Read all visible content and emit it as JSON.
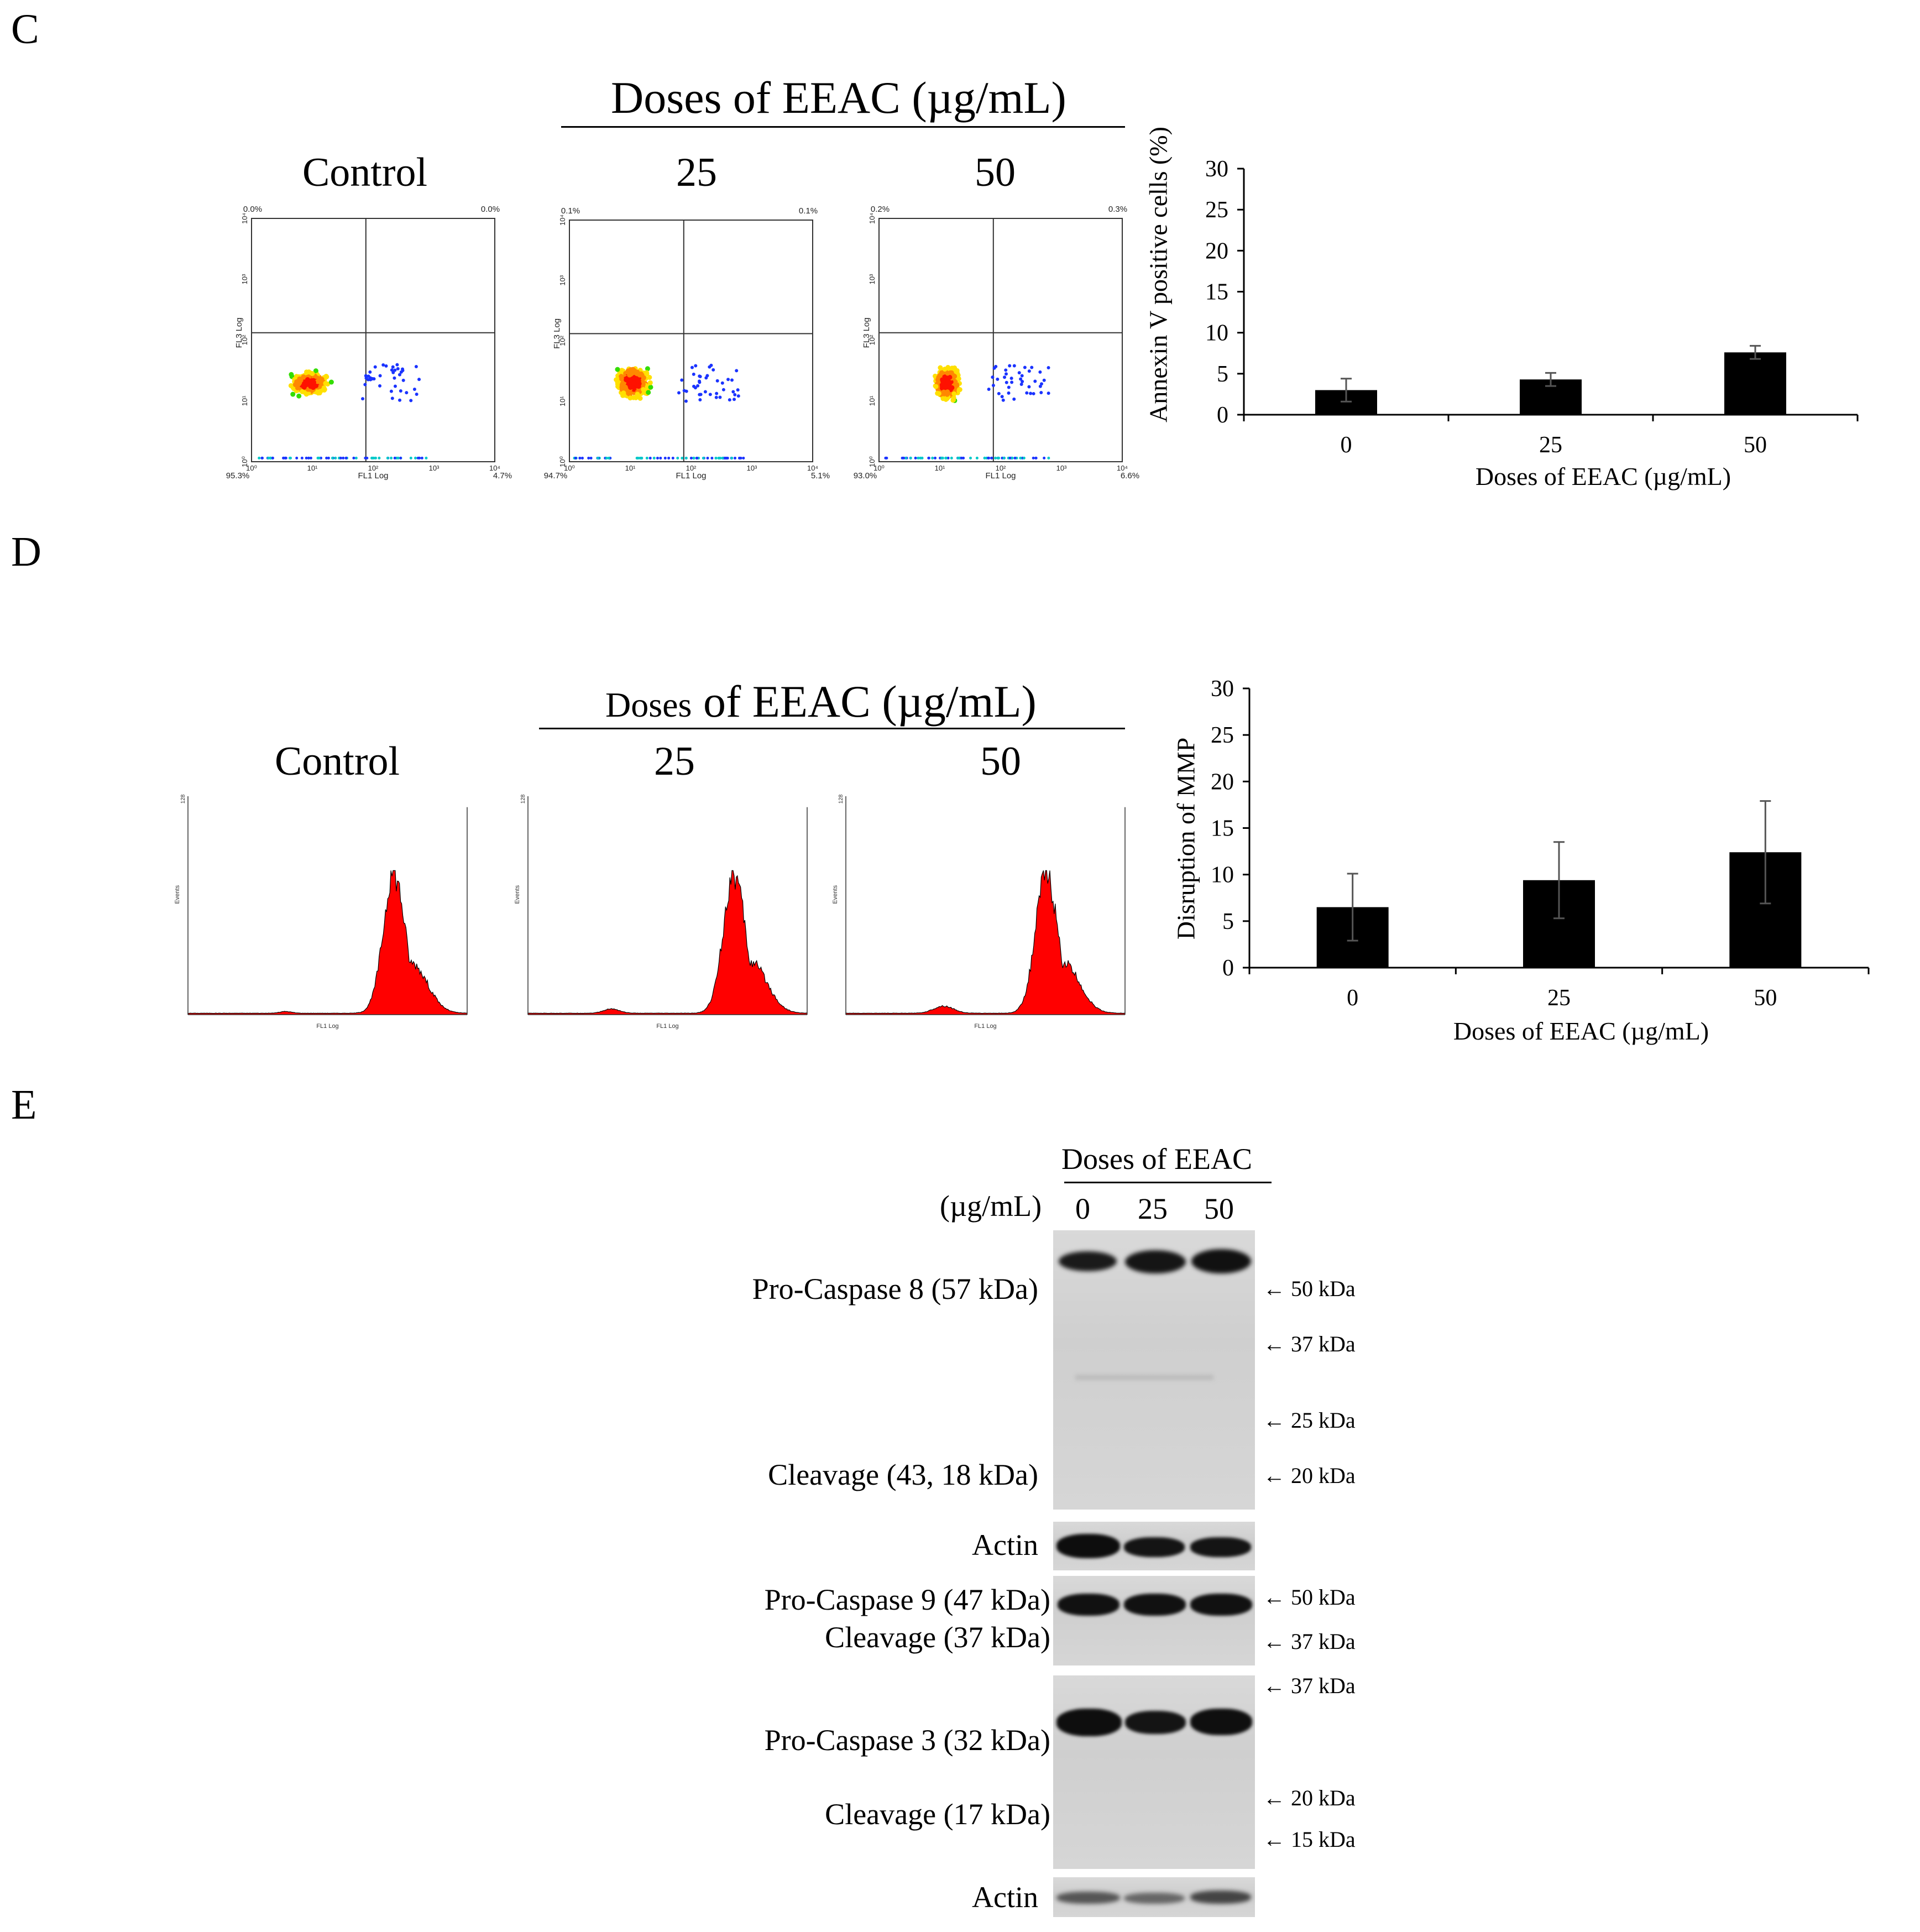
{
  "panels": {
    "C": {
      "letter": "C",
      "doses_title": "Doses of EEAC (µg/mL)",
      "scatter_plots": [
        {
          "title": "Control",
          "ul": "0.0%",
          "ur": "0.0%",
          "ll": "95.3%",
          "lr": "4.7%"
        },
        {
          "title": "25",
          "ul": "0.1%",
          "ur": "0.1%",
          "ll": "94.7%",
          "lr": "5.1%"
        },
        {
          "title": "50",
          "ul": "0.2%",
          "ur": "0.3%",
          "ll": "93.0%",
          "lr": "6.6%"
        }
      ],
      "scatter_axes": {
        "x_label": "FL1 Log",
        "y_label": "FL3 Log",
        "ticks": [
          "10⁰",
          "10¹",
          "10²",
          "10³",
          "10⁴"
        ]
      }
    },
    "D": {
      "letter": "D",
      "doses_title_small": "Doses",
      "doses_title_rest": "of EEAC (µg/mL)",
      "histograms": [
        {
          "title": "Control"
        },
        {
          "title": "25"
        },
        {
          "title": "50"
        }
      ],
      "hist_axes": {
        "x_label": "FL1 Log",
        "y_label": "Events",
        "y_max": "128"
      }
    },
    "E": {
      "letter": "E",
      "doses_header": "Doses of EEAC",
      "unit_label": "(µg/mL)",
      "lanes": [
        "0",
        "25",
        "50"
      ],
      "labels": {
        "procasp8": "Pro-Caspase 8 (57 kDa)",
        "cleav8": "Cleavage (43, 18 kDa)",
        "actin1": "Actin",
        "procasp9": "Pro-Caspase 9 (47 kDa)",
        "cleav9": "Cleavage (37 kDa)",
        "procasp3": "Pro-Caspase 3 (32 kDa)",
        "cleav3": "Cleavage (17 kDa)",
        "actin2": "Actin"
      },
      "markers": {
        "m1": "← 50 kDa",
        "m2": "← 37 kDa",
        "m3": "← 25 kDa",
        "m4": "← 20 kDa",
        "m5": "← 50 kDa",
        "m6": "← 37 kDa",
        "m7": "← 37 kDa",
        "m8": "← 20 kDa",
        "m9": "← 15 kDa"
      }
    }
  },
  "chart_data": [
    {
      "type": "bar",
      "categories": [
        "0",
        "25",
        "50"
      ],
      "values": [
        3.0,
        4.3,
        7.6
      ],
      "errors": [
        1.4,
        0.8,
        0.8
      ],
      "title": "",
      "xlabel": "Doses of EEAC (µg/mL)",
      "ylabel": "Annexin V positive cells (%)",
      "ylim": [
        0,
        30
      ],
      "yticks": [
        "0",
        "5",
        "10",
        "15",
        "20",
        "25",
        "30"
      ],
      "bar_color": "#000000"
    },
    {
      "type": "bar",
      "categories": [
        "0",
        "25",
        "50"
      ],
      "values": [
        6.5,
        9.4,
        12.4
      ],
      "errors": [
        3.6,
        4.1,
        5.5
      ],
      "title": "",
      "xlabel": "Doses of EEAC (µg/mL)",
      "ylabel": "Disruption of MMP",
      "ylim": [
        0,
        30
      ],
      "yticks": [
        "0",
        "5",
        "10",
        "15",
        "20",
        "25",
        "30"
      ],
      "bar_color": "#000000"
    }
  ]
}
